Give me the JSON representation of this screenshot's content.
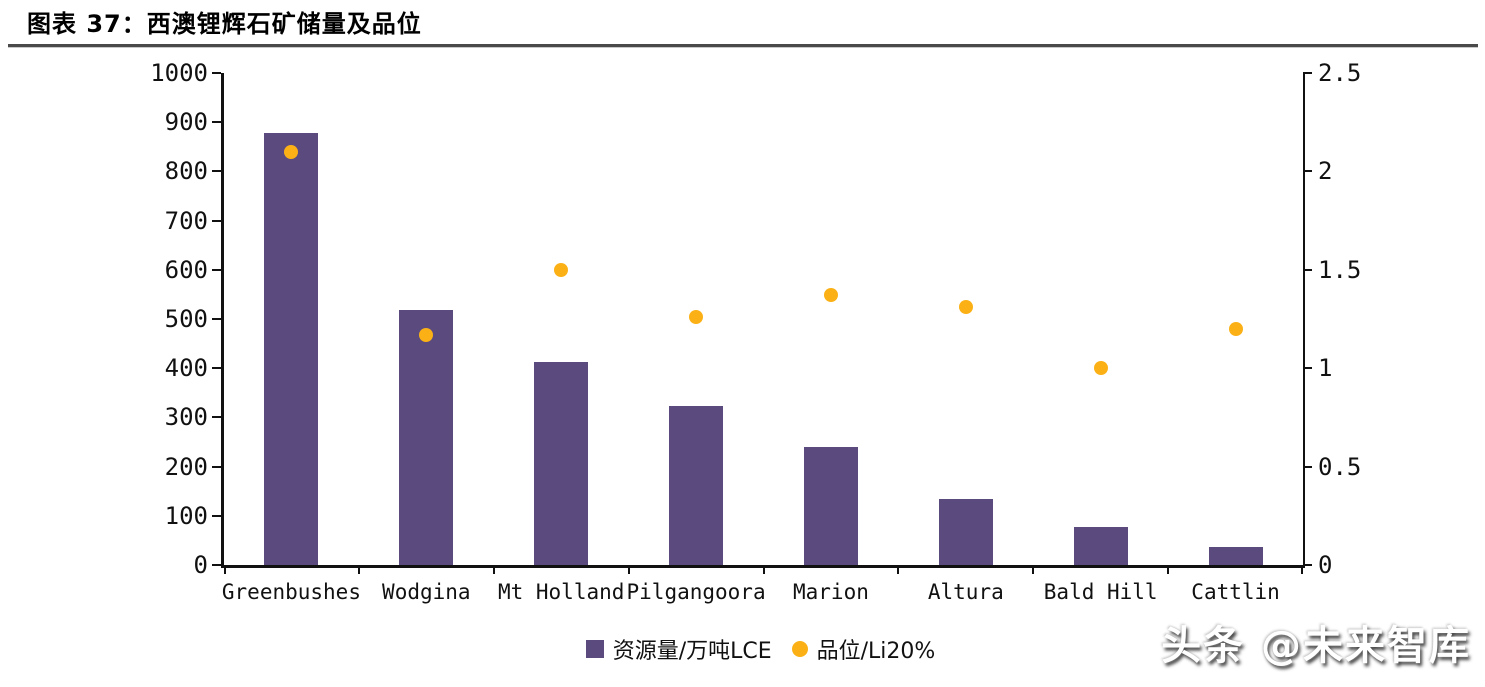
{
  "figure": {
    "title": "图表 37：西澳锂辉石矿储量及品位"
  },
  "watermark": {
    "text": "头条 @未来智库"
  },
  "colors": {
    "bar": "#5b4a7e",
    "dot": "#fbb116",
    "axis": "#111111"
  },
  "chart_data": {
    "type": "bar",
    "title": "西澳锂辉石矿储量及品位",
    "categories": [
      "Greenbushes",
      "Wodgina",
      "Mt Holland",
      "Pilgangoora",
      "Marion",
      "Altura",
      "Bald Hill",
      "Cattlin"
    ],
    "series": [
      {
        "name": "资源量/万吨LCE",
        "type": "bar",
        "axis": "left",
        "color": "#5b4a7e",
        "values": [
          878,
          519,
          412,
          323,
          239,
          134,
          77,
          37
        ]
      },
      {
        "name": "品位/Li20%",
        "type": "scatter",
        "axis": "right",
        "color": "#fbb116",
        "values": [
          2.1,
          1.17,
          1.5,
          1.26,
          1.37,
          1.31,
          1.0,
          1.2
        ]
      }
    ],
    "left_axis": {
      "min": 0,
      "max": 1000,
      "step": 100,
      "tick_labels": [
        "0",
        "100",
        "200",
        "300",
        "400",
        "500",
        "600",
        "700",
        "800",
        "900",
        "1000"
      ]
    },
    "right_axis": {
      "min": 0,
      "max": 2.5,
      "step": 0.5,
      "tick_labels": [
        "0",
        "0.5",
        "1",
        "1.5",
        "2",
        "2.5"
      ]
    },
    "grid": false,
    "legend_position": "bottom-center",
    "xlabel": "",
    "ylabel": ""
  }
}
